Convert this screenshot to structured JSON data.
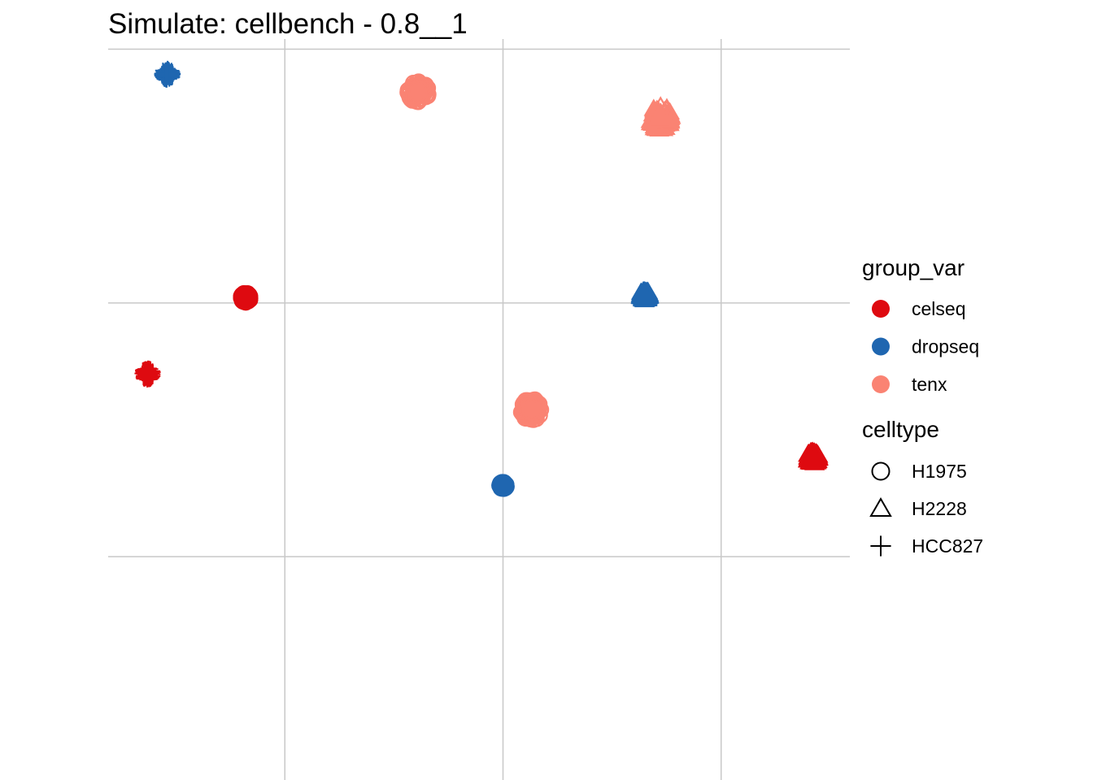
{
  "chart_data": {
    "type": "scatter",
    "title": "Simulate: cellbench - 0.8__1",
    "xlabel": "",
    "ylabel": "",
    "grid": true,
    "axes_text": false,
    "legend_position": "right",
    "color_legend": {
      "title": "group_var",
      "entries": [
        {
          "label": "celseq",
          "color": "#DE0A10"
        },
        {
          "label": "dropseq",
          "color": "#1F66B0"
        },
        {
          "label": "tenx",
          "color": "#FA8373"
        }
      ]
    },
    "shape_legend": {
      "title": "celltype",
      "entries": [
        {
          "label": "H1975",
          "shape": "circle"
        },
        {
          "label": "H2228",
          "shape": "triangle"
        },
        {
          "label": "HCC827",
          "shape": "plus"
        }
      ]
    },
    "x_grid_values": [
      -1,
      0,
      1
    ],
    "y_grid_values": [
      -1,
      0,
      1
    ],
    "xlim": [
      -1.81,
      1.59
    ],
    "ylim": [
      -1.88,
      1.04
    ],
    "clusters": [
      {
        "group": "dropseq",
        "celltype": "HCC827",
        "x": -1.54,
        "y": 0.9,
        "spread": 0.05
      },
      {
        "group": "tenx",
        "celltype": "H1975",
        "x": -0.39,
        "y": 0.83,
        "spread": 0.09
      },
      {
        "group": "tenx",
        "celltype": "H2228",
        "x": 0.72,
        "y": 0.73,
        "spread": 0.1
      },
      {
        "group": "celseq",
        "celltype": "HCC827",
        "x": -1.63,
        "y": -0.28,
        "spread": 0.05
      },
      {
        "group": "tenx",
        "celltype": "H1975",
        "x": 0.13,
        "y": -0.42,
        "spread": 0.09
      },
      {
        "group": "celseq",
        "celltype": "H2228",
        "x": 1.42,
        "y": -0.61,
        "spread": 0.05
      },
      {
        "group": "celseq",
        "celltype": "H1975",
        "x": -1.18,
        "y": 0.02,
        "spread": 0.04
      },
      {
        "group": "dropseq",
        "celltype": "H2228",
        "x": 0.65,
        "y": 0.03,
        "spread": 0.04
      },
      {
        "group": "dropseq",
        "celltype": "H1975",
        "x": 0.0,
        "y": -0.72,
        "spread": 0.03
      }
    ]
  }
}
